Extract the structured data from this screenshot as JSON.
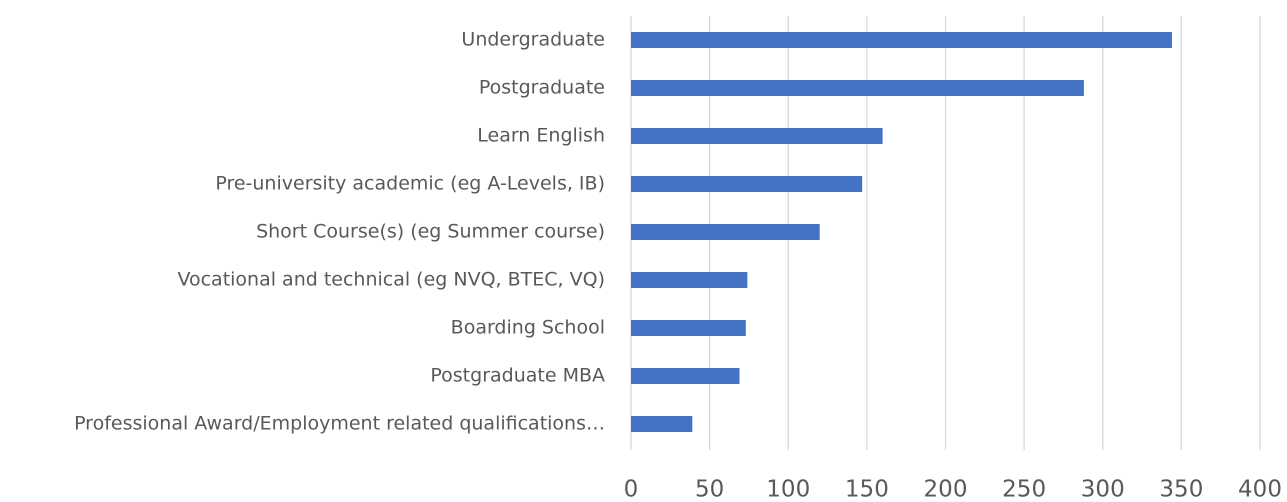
{
  "chart_data": {
    "type": "bar",
    "orientation": "horizontal",
    "categories": [
      "Undergraduate",
      "Postgraduate",
      "Learn English",
      "Pre-university academic (eg A-Levels, IB)",
      "Short Course(s) (eg Summer course)",
      "Vocational and technical (eg NVQ, BTEC, VQ)",
      "Boarding School",
      "Postgraduate MBA",
      "Professional Award/Employment related qualifications…"
    ],
    "values": [
      344,
      288,
      160,
      147,
      120,
      74,
      73,
      69,
      39
    ],
    "color": "#4472c4",
    "xlim": [
      0,
      400
    ],
    "xticks": [
      0,
      50,
      100,
      150,
      200,
      250,
      300,
      350,
      400
    ],
    "grid": true
  }
}
